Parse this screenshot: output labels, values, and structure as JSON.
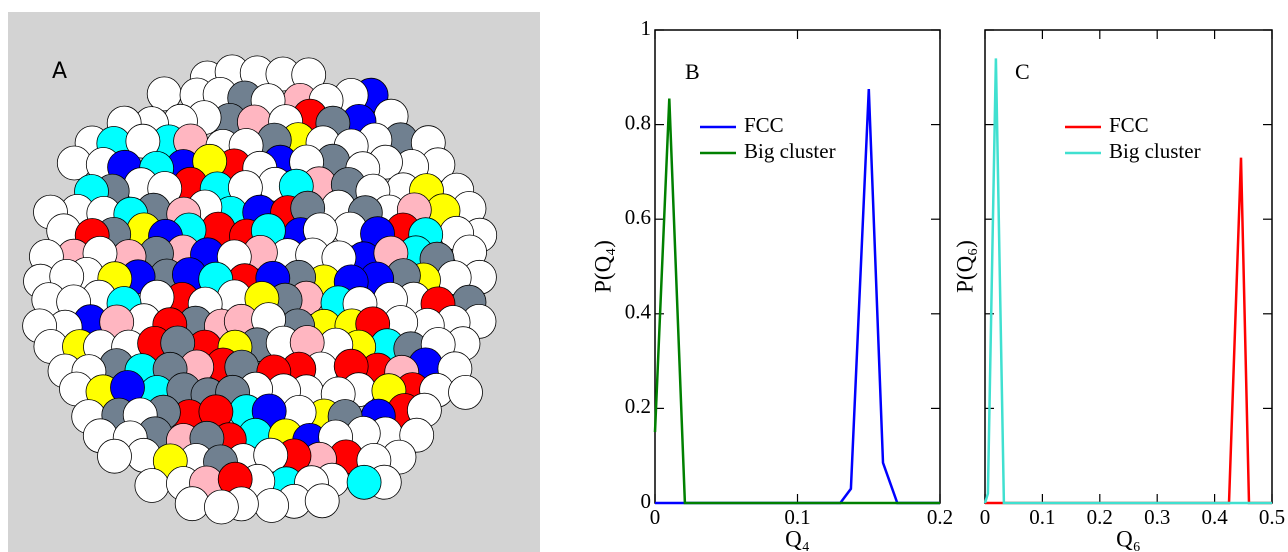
{
  "image_panel": {
    "label": "A"
  },
  "chart_data": [
    {
      "type": "line",
      "panel_label": "B",
      "xlabel": "Q₄",
      "ylabel": "P(Q₄)",
      "xlim": [
        0,
        0.2
      ],
      "ylim": [
        0,
        1
      ],
      "xticks": [
        0,
        0.1,
        0.2
      ],
      "yticks": [
        0,
        0.2,
        0.4,
        0.6,
        0.8,
        1
      ],
      "show_ytick_labels": true,
      "series": [
        {
          "name": "FCC",
          "color": "#0000ff",
          "x": [
            0,
            0.13,
            0.1375,
            0.15,
            0.16,
            0.17,
            0.2
          ],
          "values": [
            0,
            0,
            0.03,
            0.875,
            0.085,
            0,
            0
          ]
        },
        {
          "name": "Big cluster",
          "color": "#008000",
          "x": [
            0,
            0.01,
            0.021,
            0.2
          ],
          "values": [
            0.15,
            0.855,
            0,
            0
          ]
        }
      ]
    },
    {
      "type": "line",
      "panel_label": "C",
      "xlabel": "Q₆",
      "ylabel": "P(Q₆)",
      "xlim": [
        0,
        0.5
      ],
      "ylim": [
        0,
        1
      ],
      "xticks": [
        0,
        0.1,
        0.2,
        0.3,
        0.4,
        0.5
      ],
      "yticks": [
        0,
        0.2,
        0.4,
        0.6,
        0.8,
        1
      ],
      "show_ytick_labels": false,
      "series": [
        {
          "name": "FCC",
          "color": "#ff0000",
          "x": [
            0,
            0.425,
            0.446,
            0.46,
            0.5
          ],
          "values": [
            0,
            0,
            0.73,
            0,
            0
          ]
        },
        {
          "name": "Big cluster",
          "color": "#40e0d0",
          "x": [
            0,
            0.005,
            0.019,
            0.033,
            0.5
          ],
          "values": [
            0,
            0.02,
            0.94,
            0,
            0
          ]
        }
      ]
    }
  ]
}
